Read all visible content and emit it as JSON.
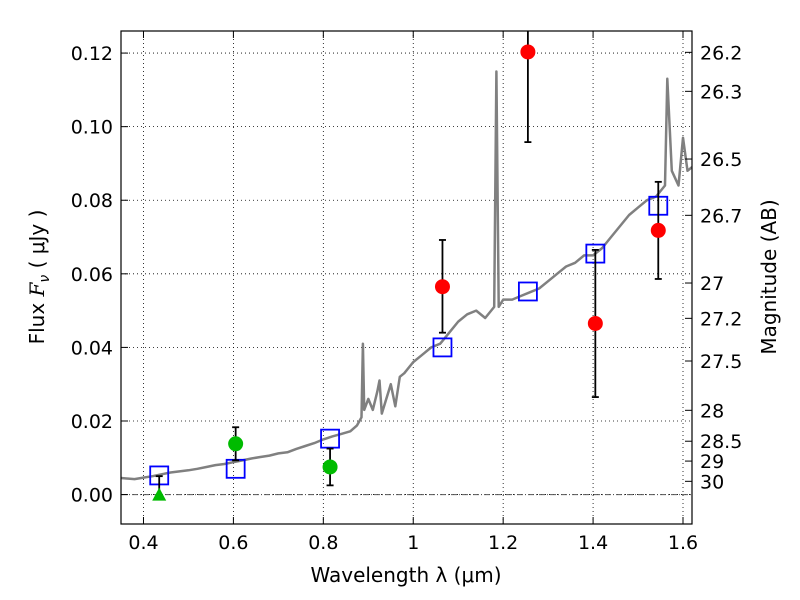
{
  "chart_data": {
    "type": "scatter",
    "xlabel": "Wavelength  λ (μm)",
    "ylabel": "Flux  F_ν  ( μJy )",
    "ylabel_parts": {
      "prefix": "Flux  ",
      "symbol": "F",
      "subscript": "ν",
      "suffix": "  ( μJy )"
    },
    "y2label": "Magnitude (AB)",
    "xlim": [
      0.35,
      1.62
    ],
    "ylim": [
      -0.008,
      0.126
    ],
    "grid": true,
    "x_ticks": [
      0.4,
      0.6,
      0.8,
      1.0,
      1.2,
      1.4,
      1.6
    ],
    "x_tick_labels": [
      "0.4",
      "0.6",
      "0.8",
      "1",
      "1.2",
      "1.4",
      "1.6"
    ],
    "y_ticks": [
      0.0,
      0.02,
      0.04,
      0.06,
      0.08,
      0.1,
      0.12
    ],
    "y_tick_labels": [
      "0.00",
      "0.02",
      "0.04",
      "0.06",
      "0.08",
      "0.10",
      "0.12"
    ],
    "y2_ticks": [
      {
        "label": "26.2",
        "flux": 0.1202
      },
      {
        "label": "26.3",
        "flux": 0.1096
      },
      {
        "label": "26.5",
        "flux": 0.0912
      },
      {
        "label": "26.7",
        "flux": 0.0759
      },
      {
        "label": "27",
        "flux": 0.0575
      },
      {
        "label": "27.2",
        "flux": 0.0479
      },
      {
        "label": "27.5",
        "flux": 0.0363
      },
      {
        "label": "28",
        "flux": 0.0229
      },
      {
        "label": "28.5",
        "flux": 0.0145
      },
      {
        "label": "29",
        "flux": 0.0091
      },
      {
        "label": "30",
        "flux": 0.0036
      }
    ],
    "colors": {
      "model": "#808080",
      "model_points": "#0000ff",
      "red_points": "#ff0000",
      "green_points": "#00bb00",
      "errorbar": "#000000",
      "zero_line": "#555555"
    },
    "series": [
      {
        "type": "line",
        "points": [
          [
            0.35,
            0.0045
          ],
          [
            0.38,
            0.0042
          ],
          [
            0.4,
            0.0046
          ],
          [
            0.42,
            0.005
          ],
          [
            0.44,
            0.0055
          ],
          [
            0.46,
            0.006
          ],
          [
            0.48,
            0.0063
          ],
          [
            0.5,
            0.0066
          ],
          [
            0.52,
            0.007
          ],
          [
            0.54,
            0.0075
          ],
          [
            0.56,
            0.008
          ],
          [
            0.58,
            0.0083
          ],
          [
            0.6,
            0.0088
          ],
          [
            0.62,
            0.0093
          ],
          [
            0.64,
            0.0098
          ],
          [
            0.66,
            0.0102
          ],
          [
            0.68,
            0.0106
          ],
          [
            0.7,
            0.0112
          ],
          [
            0.72,
            0.0115
          ],
          [
            0.74,
            0.0124
          ],
          [
            0.76,
            0.0132
          ],
          [
            0.78,
            0.014
          ],
          [
            0.8,
            0.015
          ],
          [
            0.82,
            0.0158
          ],
          [
            0.84,
            0.0165
          ],
          [
            0.86,
            0.0172
          ],
          [
            0.875,
            0.0188
          ],
          [
            0.885,
            0.021
          ],
          [
            0.888,
            0.041
          ],
          [
            0.891,
            0.023
          ],
          [
            0.9,
            0.026
          ],
          [
            0.91,
            0.023
          ],
          [
            0.92,
            0.028
          ],
          [
            0.925,
            0.031
          ],
          [
            0.93,
            0.022
          ],
          [
            0.94,
            0.026
          ],
          [
            0.95,
            0.03
          ],
          [
            0.96,
            0.024
          ],
          [
            0.97,
            0.032
          ],
          [
            0.98,
            0.033
          ],
          [
            1.0,
            0.036
          ],
          [
            1.02,
            0.038
          ],
          [
            1.04,
            0.04
          ],
          [
            1.06,
            0.041
          ],
          [
            1.08,
            0.044
          ],
          [
            1.1,
            0.047
          ],
          [
            1.12,
            0.049
          ],
          [
            1.14,
            0.05
          ],
          [
            1.16,
            0.048
          ],
          [
            1.18,
            0.051
          ],
          [
            1.185,
            0.115
          ],
          [
            1.19,
            0.051
          ],
          [
            1.2,
            0.053
          ],
          [
            1.22,
            0.053
          ],
          [
            1.24,
            0.054
          ],
          [
            1.26,
            0.055
          ],
          [
            1.28,
            0.056
          ],
          [
            1.3,
            0.058
          ],
          [
            1.32,
            0.06
          ],
          [
            1.34,
            0.062
          ],
          [
            1.36,
            0.063
          ],
          [
            1.38,
            0.065
          ],
          [
            1.4,
            0.065
          ],
          [
            1.42,
            0.067
          ],
          [
            1.44,
            0.07
          ],
          [
            1.46,
            0.073
          ],
          [
            1.48,
            0.076
          ],
          [
            1.5,
            0.078
          ],
          [
            1.52,
            0.08
          ],
          [
            1.54,
            0.081
          ],
          [
            1.56,
            0.084
          ],
          [
            1.565,
            0.113
          ],
          [
            1.575,
            0.088
          ],
          [
            1.59,
            0.084
          ],
          [
            1.6,
            0.097
          ],
          [
            1.61,
            0.088
          ],
          [
            1.62,
            0.089
          ]
        ]
      },
      {
        "type": "model_points",
        "x": [
          0.435,
          0.605,
          0.815,
          1.065,
          1.255,
          1.405,
          1.545
        ],
        "y": [
          0.0052,
          0.007,
          0.0152,
          0.04,
          0.0552,
          0.0655,
          0.0785
        ]
      },
      {
        "type": "red_points",
        "x": [
          1.065,
          1.255,
          1.405,
          1.545
        ],
        "y": [
          0.0565,
          0.1203,
          0.0465,
          0.0718
        ],
        "yerr_lo": [
          0.0125,
          0.0245,
          0.02,
          0.0132
        ],
        "yerr_hi": [
          0.0127,
          0.04,
          0.02,
          0.0132
        ]
      },
      {
        "type": "green_points",
        "x": [
          0.605,
          0.815
        ],
        "y": [
          0.0138,
          0.0075
        ],
        "yerr_lo": [
          0.0045,
          0.005
        ],
        "yerr_hi": [
          0.0045,
          0.005
        ]
      },
      {
        "type": "green_triangle",
        "x": [
          0.435
        ],
        "y": [
          0.0
        ],
        "yerr_lo": [
          0.0
        ],
        "yerr_hi": [
          0.005
        ]
      }
    ]
  }
}
